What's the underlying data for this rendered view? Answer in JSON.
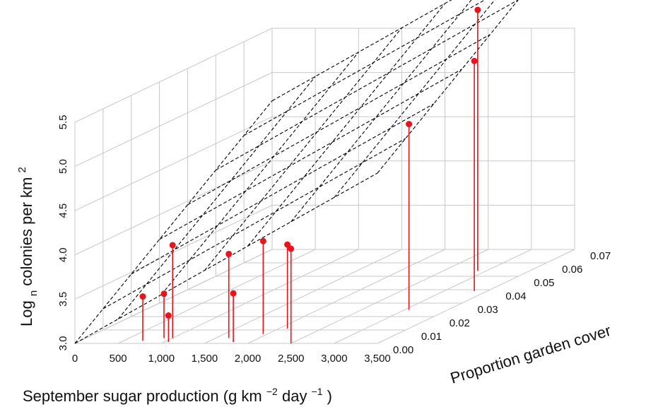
{
  "chart_data": {
    "type": "scatter",
    "subtype": "3d-scatter-with-regression-plane",
    "x_axis": {
      "label": "September sugar production",
      "label_units": "(g km",
      "label_exp1": "−2",
      "label_mid": " day",
      "label_exp2": "−1",
      "label_close": ")",
      "range": [
        0,
        3500
      ],
      "tick_labels": [
        "0",
        "500",
        "1,000",
        "1,500",
        "2,000",
        "2,500",
        "3,000",
        "3,500"
      ]
    },
    "y_axis": {
      "label": "Proportion garden cover",
      "range": [
        0,
        0.07
      ],
      "tick_labels": [
        "0.00",
        "0.01",
        "0.02",
        "0.03",
        "0.04",
        "0.05",
        "0.06",
        "0.07"
      ]
    },
    "z_axis": {
      "label_prefix": "Log",
      "label_sub": "n",
      "label_mid": " colonies per km",
      "label_sup": "2",
      "range": [
        3.0,
        5.5
      ],
      "tick_labels": [
        "3.0",
        "3.5",
        "4.0",
        "4.5",
        "5.0",
        "5.5"
      ]
    },
    "points": [
      {
        "x": 720,
        "y": 0.002,
        "z": 3.5
      },
      {
        "x": 900,
        "y": 0.004,
        "z": 3.5
      },
      {
        "x": 1000,
        "y": 0.004,
        "z": 4.05
      },
      {
        "x": 1050,
        "y": 0.001,
        "z": 3.3
      },
      {
        "x": 1650,
        "y": 0.004,
        "z": 3.95
      },
      {
        "x": 1800,
        "y": 0.001,
        "z": 3.55
      },
      {
        "x": 1950,
        "y": 0.007,
        "z": 4.05
      },
      {
        "x": 2100,
        "y": 0.011,
        "z": 3.95
      },
      {
        "x": 2500,
        "y": 0.0,
        "z": 4.07
      },
      {
        "x": 3050,
        "y": 0.025,
        "z": 5.1
      },
      {
        "x": 2900,
        "y": 0.054,
        "z": 5.95
      },
      {
        "x": 3350,
        "y": 0.039,
        "z": 5.6
      }
    ],
    "regression_plane": {
      "intercept": 3.0,
      "slope_x": 0.00055,
      "slope_y": 24.0
    },
    "grid": true,
    "colors": {
      "points": "#e8141b",
      "stems": "#e8141b",
      "plane": "#000000",
      "grid": "#c8c8c8"
    }
  }
}
